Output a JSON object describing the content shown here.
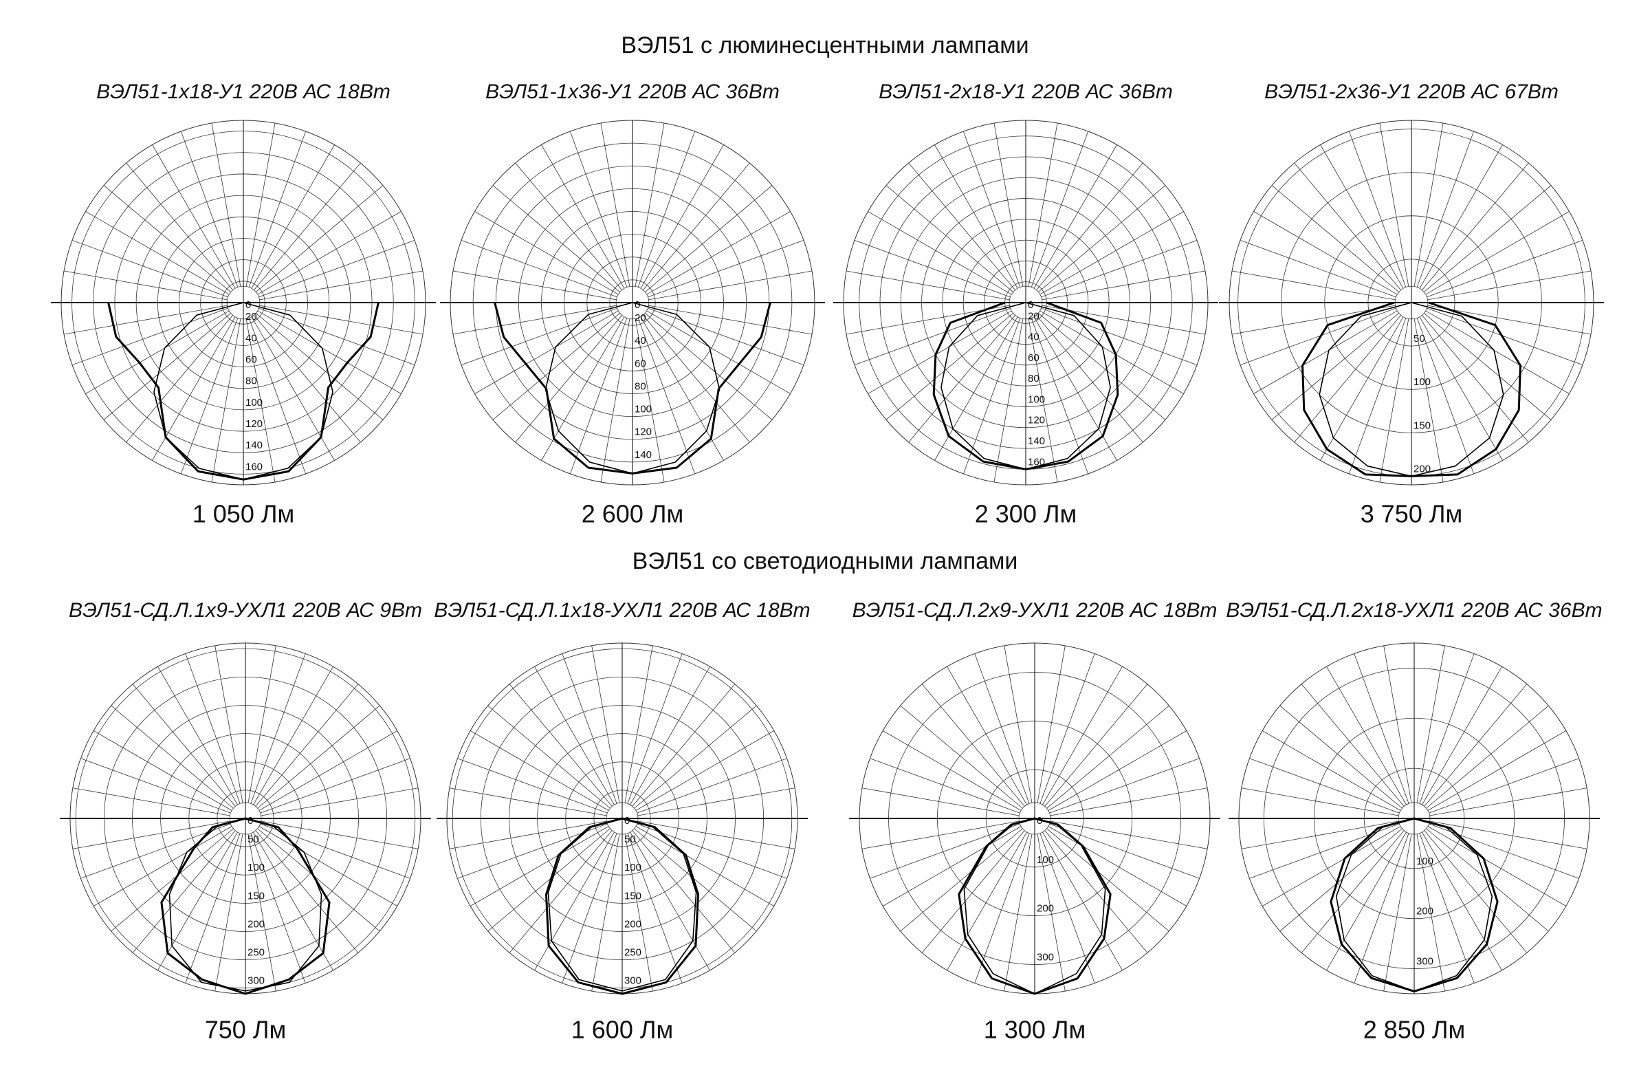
{
  "sections": [
    "ВЭЛ51 с люминесцентными лампами",
    "ВЭЛ51 со светодиодными лампами"
  ],
  "chart_data": [
    {
      "type": "polar",
      "title": "ВЭЛ51-1х18-У1 220В АС 18Вт",
      "caption": "1 050 Лм",
      "x": [
        -90,
        -75,
        -60,
        -45,
        -30,
        -15,
        0,
        15,
        30,
        45,
        60,
        75,
        90
      ],
      "rlim": [
        0,
        170
      ],
      "rticks": [
        0,
        20,
        40,
        60,
        80,
        100,
        120,
        140,
        160
      ],
      "series": [
        {
          "color": "#000000",
          "values": [
            0,
            45,
            85,
            118,
            145,
            160,
            165,
            160,
            145,
            118,
            85,
            45,
            0
          ]
        },
        {
          "color": "#000000",
          "values": [
            126,
            123,
            112,
            112,
            145,
            163,
            165,
            163,
            145,
            112,
            112,
            123,
            126
          ]
        }
      ]
    },
    {
      "type": "polar",
      "title": "ВЭЛ51-1х36-У1  220В АС 36Вт",
      "caption": "2 600 Лм",
      "x": [
        -90,
        -75,
        -60,
        -45,
        -30,
        -15,
        0,
        15,
        30,
        45,
        60,
        75,
        90
      ],
      "rlim": [
        0,
        160
      ],
      "rticks": [
        0,
        20,
        40,
        60,
        80,
        100,
        120,
        140
      ],
      "series": [
        {
          "color": "#000000",
          "values": [
            0,
            40,
            78,
            108,
            130,
            145,
            150,
            145,
            130,
            108,
            78,
            40,
            0
          ]
        },
        {
          "color": "#000000",
          "values": [
            121,
            117,
            108,
            107,
            138,
            150,
            150,
            150,
            138,
            107,
            108,
            117,
            121
          ]
        }
      ]
    },
    {
      "type": "polar",
      "title": "ВЭЛ51-2х18-У1 220В АС 36Вт",
      "caption": "2 300 Лм",
      "x": [
        -90,
        -75,
        -60,
        -45,
        -30,
        -15,
        0,
        15,
        30,
        45,
        60,
        75,
        90
      ],
      "rlim": [
        0,
        175
      ],
      "rticks": [
        0,
        20,
        40,
        60,
        80,
        100,
        120,
        140,
        160
      ],
      "series": [
        {
          "color": "#000000",
          "values": [
            0,
            48,
            85,
            115,
            140,
            155,
            160,
            155,
            140,
            115,
            85,
            48,
            0
          ]
        },
        {
          "color": "#000000",
          "values": [
            20,
            75,
            100,
            125,
            148,
            158,
            160,
            158,
            148,
            125,
            100,
            75,
            20
          ]
        }
      ]
    },
    {
      "type": "polar",
      "title": "ВЭЛ51-2х36-У1 220В АС 67Вт",
      "caption": "3 750 Лм",
      "x": [
        -90,
        -75,
        -60,
        -45,
        -30,
        -15,
        0,
        15,
        30,
        45,
        60,
        75,
        90
      ],
      "rlim": [
        0,
        210
      ],
      "rticks": [
        50,
        100,
        150,
        200
      ],
      "series": [
        {
          "color": "#000000",
          "values": [
            0,
            60,
            110,
            150,
            180,
            195,
            200,
            195,
            180,
            150,
            110,
            60,
            0
          ]
        },
        {
          "color": "#000000",
          "values": [
            20,
            100,
            145,
            175,
            195,
            205,
            200,
            205,
            195,
            175,
            145,
            100,
            20
          ]
        }
      ]
    },
    {
      "type": "polar",
      "title": "ВЭЛ51-СД.Л.1х9-УХЛ1 220В АС 9Вт",
      "caption": "750 Лм",
      "x": [
        -90,
        -75,
        -60,
        -45,
        -30,
        -15,
        0,
        15,
        30,
        45,
        60,
        75,
        90
      ],
      "rlim": [
        0,
        310
      ],
      "rticks": [
        0,
        50,
        100,
        150,
        200,
        250,
        300
      ],
      "series": [
        {
          "color": "#000000",
          "values": [
            0,
            50,
            120,
            190,
            260,
            300,
            305,
            300,
            260,
            190,
            120,
            50,
            0
          ]
        },
        {
          "color": "#000000",
          "values": [
            0,
            60,
            105,
            210,
            275,
            295,
            310,
            295,
            275,
            210,
            105,
            60,
            0
          ]
        }
      ]
    },
    {
      "type": "polar",
      "title": "ВЭЛ51-СД.Л.1х18-УХЛ1 220В АС 18Вт",
      "caption": "1 600 Лм",
      "x": [
        -90,
        -75,
        -60,
        -45,
        -30,
        -15,
        0,
        15,
        30,
        45,
        60,
        75,
        90
      ],
      "rlim": [
        0,
        310
      ],
      "rticks": [
        0,
        50,
        100,
        150,
        200,
        250,
        300
      ],
      "series": [
        {
          "color": "#000000",
          "values": [
            0,
            55,
            125,
            185,
            250,
            295,
            305,
            295,
            250,
            185,
            125,
            55,
            0
          ]
        },
        {
          "color": "#000000",
          "values": [
            0,
            60,
            130,
            190,
            260,
            300,
            310,
            300,
            260,
            190,
            130,
            60,
            0
          ]
        }
      ]
    },
    {
      "type": "polar",
      "title": "ВЭЛ51-СД.Л.2х9-УХЛ1 220В АС 18Вт",
      "caption": "1 300 Лм",
      "x": [
        -90,
        -75,
        -60,
        -45,
        -30,
        -15,
        0,
        15,
        30,
        45,
        60,
        75,
        90
      ],
      "rlim": [
        0,
        360
      ],
      "rticks": [
        0,
        100,
        200,
        300
      ],
      "series": [
        {
          "color": "#000000",
          "values": [
            0,
            45,
            110,
            205,
            275,
            330,
            360,
            330,
            275,
            205,
            110,
            45,
            0
          ]
        },
        {
          "color": "#000000",
          "values": [
            0,
            50,
            115,
            220,
            285,
            340,
            360,
            340,
            285,
            220,
            115,
            50,
            0
          ]
        }
      ]
    },
    {
      "type": "polar",
      "title": "ВЭЛ51-СД.Л.2х18-УХЛ1 220В АС 36Вт",
      "caption": "2 850 Лм",
      "x": [
        -90,
        -75,
        -60,
        -45,
        -30,
        -15,
        0,
        15,
        30,
        45,
        60,
        75,
        90
      ],
      "rlim": [
        0,
        350
      ],
      "rticks": [
        100,
        200,
        300
      ],
      "series": [
        {
          "color": "#000000",
          "values": [
            0,
            65,
            145,
            220,
            280,
            325,
            345,
            325,
            280,
            220,
            145,
            65,
            0
          ]
        },
        {
          "color": "#000000",
          "values": [
            0,
            75,
            160,
            235,
            290,
            330,
            345,
            330,
            290,
            235,
            160,
            75,
            0
          ]
        }
      ]
    }
  ]
}
